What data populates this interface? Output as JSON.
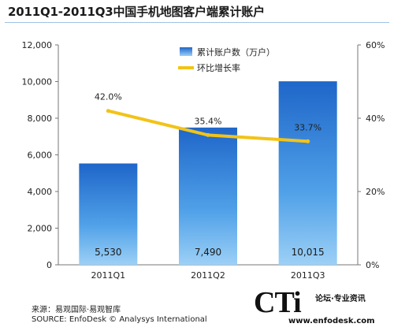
{
  "title": "2011Q1-2011Q3中国手机地图客户端累计账户",
  "source_cn": "来源：易观国际·易观智库",
  "source_en": "SOURCE: EnfoDesk © Analysys International",
  "watermark": {
    "logo": "CTi",
    "tagline": "论坛·专业资讯",
    "url": "www.enfodesk.com"
  },
  "chart_data": {
    "type": "bar",
    "categories": [
      "2011Q1",
      "2011Q2",
      "2011Q3"
    ],
    "series": [
      {
        "name": "累计账户数（万户）",
        "type": "bar",
        "axis": "left",
        "values": [
          5530,
          7490,
          10015
        ],
        "value_labels": [
          "5,530",
          "7,490",
          "10,015"
        ],
        "color": "#1f6fd0"
      },
      {
        "name": "环比增长率",
        "type": "line",
        "axis": "right",
        "values": [
          42.0,
          35.4,
          33.7
        ],
        "value_labels": [
          "42.0%",
          "35.4%",
          "33.7%"
        ],
        "color": "#f2c318"
      }
    ],
    "y_left": {
      "ylim": [
        0,
        12000
      ],
      "ticks": [
        0,
        2000,
        4000,
        6000,
        8000,
        10000,
        12000
      ],
      "tick_labels": [
        "0",
        "2,000",
        "4,000",
        "6,000",
        "8,000",
        "10,000",
        "12,000"
      ]
    },
    "y_right": {
      "ylim": [
        0,
        60
      ],
      "ticks": [
        0,
        20,
        40,
        60
      ],
      "tick_labels": [
        "0%",
        "20%",
        "40%",
        "60%"
      ]
    },
    "legend_position": "top-right",
    "grid": false
  }
}
